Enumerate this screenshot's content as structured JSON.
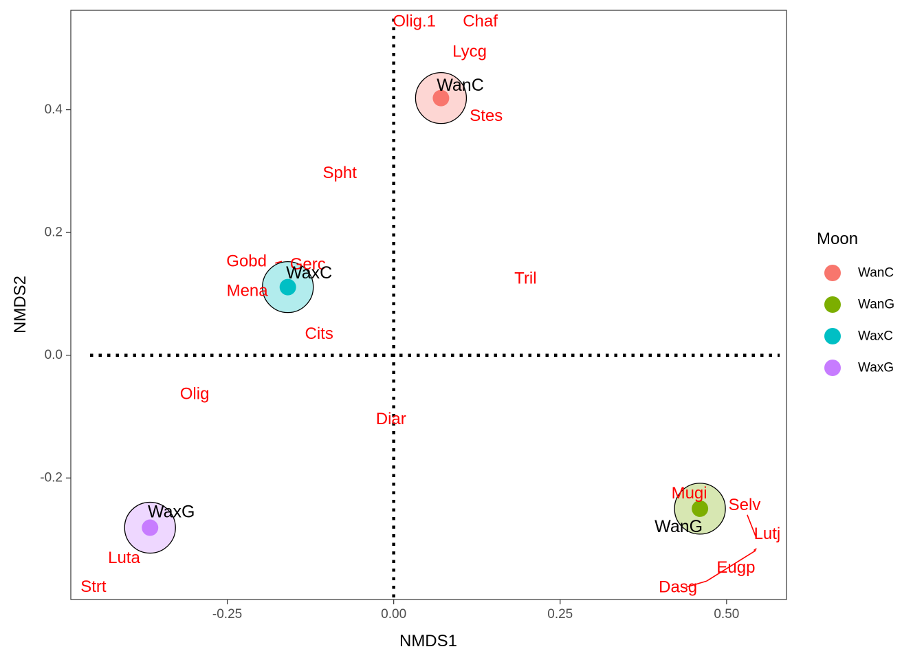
{
  "chart_data": {
    "type": "scatter",
    "xlabel": "NMDS1",
    "ylabel": "NMDS2",
    "xlim": [
      -0.485,
      0.59
    ],
    "ylim": [
      -0.398,
      0.562
    ],
    "x_ticks": [
      -0.25,
      0.0,
      0.25,
      0.5
    ],
    "x_tick_labels": [
      "-0.25",
      "0.00",
      "0.25",
      "0.50"
    ],
    "y_ticks": [
      -0.2,
      0.0,
      0.2,
      0.4
    ],
    "y_tick_labels": [
      "-0.2",
      "0.0",
      "0.2",
      "0.4"
    ],
    "grid": false,
    "reference_lines": {
      "x": 0,
      "y": 0,
      "style": "dotted"
    },
    "legend": {
      "title": "Moon",
      "placement": "right",
      "entries": [
        {
          "label": "WanC",
          "color": "#F8766D"
        },
        {
          "label": "WanG",
          "color": "#7CAE00"
        },
        {
          "label": "WaxC",
          "color": "#00BFC4"
        },
        {
          "label": "WaxG",
          "color": "#C77CFF"
        }
      ]
    },
    "groups": [
      {
        "name": "WanC",
        "x": 0.071,
        "y": 0.419,
        "color": "#F8766D",
        "label": "WanC",
        "label_x": 0.1,
        "label_y": 0.44
      },
      {
        "name": "WanG",
        "x": 0.46,
        "y": -0.25,
        "color": "#7CAE00",
        "label": "WanG",
        "label_x": 0.428,
        "label_y": -0.279
      },
      {
        "name": "WaxC",
        "x": -0.159,
        "y": 0.111,
        "color": "#00BFC4",
        "label": "WaxC",
        "label_x": -0.127,
        "label_y": 0.134
      },
      {
        "name": "WaxG",
        "x": -0.366,
        "y": -0.281,
        "color": "#C77CFF",
        "label": "WaxG",
        "label_x": -0.334,
        "label_y": -0.255
      }
    ],
    "species": [
      {
        "label": "Olig.1",
        "x": 0.031,
        "y": 0.544
      },
      {
        "label": "Chaf",
        "x": 0.13,
        "y": 0.544
      },
      {
        "label": "Lycg",
        "x": 0.114,
        "y": 0.495
      },
      {
        "label": "Stes",
        "x": 0.139,
        "y": 0.39
      },
      {
        "label": "Spht",
        "x": -0.081,
        "y": 0.297
      },
      {
        "label": "Gobd",
        "x": -0.221,
        "y": 0.153
      },
      {
        "label": "Gerc",
        "x": -0.129,
        "y": 0.148
      },
      {
        "label": "Mena",
        "x": -0.22,
        "y": 0.105
      },
      {
        "label": "Tril",
        "x": 0.198,
        "y": 0.125
      },
      {
        "label": "Cits",
        "x": -0.112,
        "y": 0.035
      },
      {
        "label": "Olig",
        "x": -0.299,
        "y": -0.063
      },
      {
        "label": "Diar",
        "x": -0.004,
        "y": -0.104
      },
      {
        "label": "Mugi",
        "x": 0.444,
        "y": -0.225
      },
      {
        "label": "Selv",
        "x": 0.527,
        "y": -0.244
      },
      {
        "label": "Lutj",
        "x": 0.561,
        "y": -0.291
      },
      {
        "label": "Eugp",
        "x": 0.514,
        "y": -0.346
      },
      {
        "label": "Dasg",
        "x": 0.427,
        "y": -0.378
      },
      {
        "label": "Luta",
        "x": -0.405,
        "y": -0.33
      },
      {
        "label": "Strt",
        "x": -0.451,
        "y": -0.377
      }
    ]
  }
}
